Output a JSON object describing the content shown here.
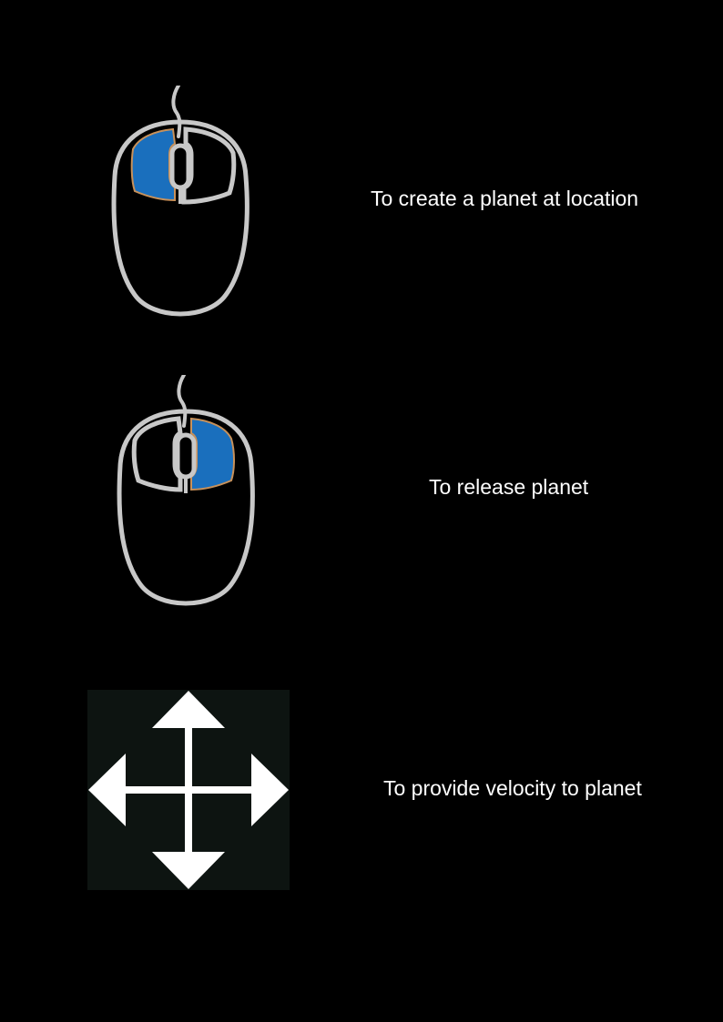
{
  "instructions": [
    {
      "icon": "mouse-left-click-icon",
      "text": "To create a planet at location"
    },
    {
      "icon": "mouse-right-click-icon",
      "text": "To release planet"
    },
    {
      "icon": "move-arrows-icon",
      "text": "To provide velocity to planet"
    }
  ],
  "colors": {
    "background": "#000000",
    "text": "#ffffff",
    "mouse_outline": "#c8c8c8",
    "button_highlight": "#1a6fbd",
    "button_edge": "#c8915a",
    "arrows": "#ffffff",
    "arrow_backdrop": "#0d1411"
  }
}
